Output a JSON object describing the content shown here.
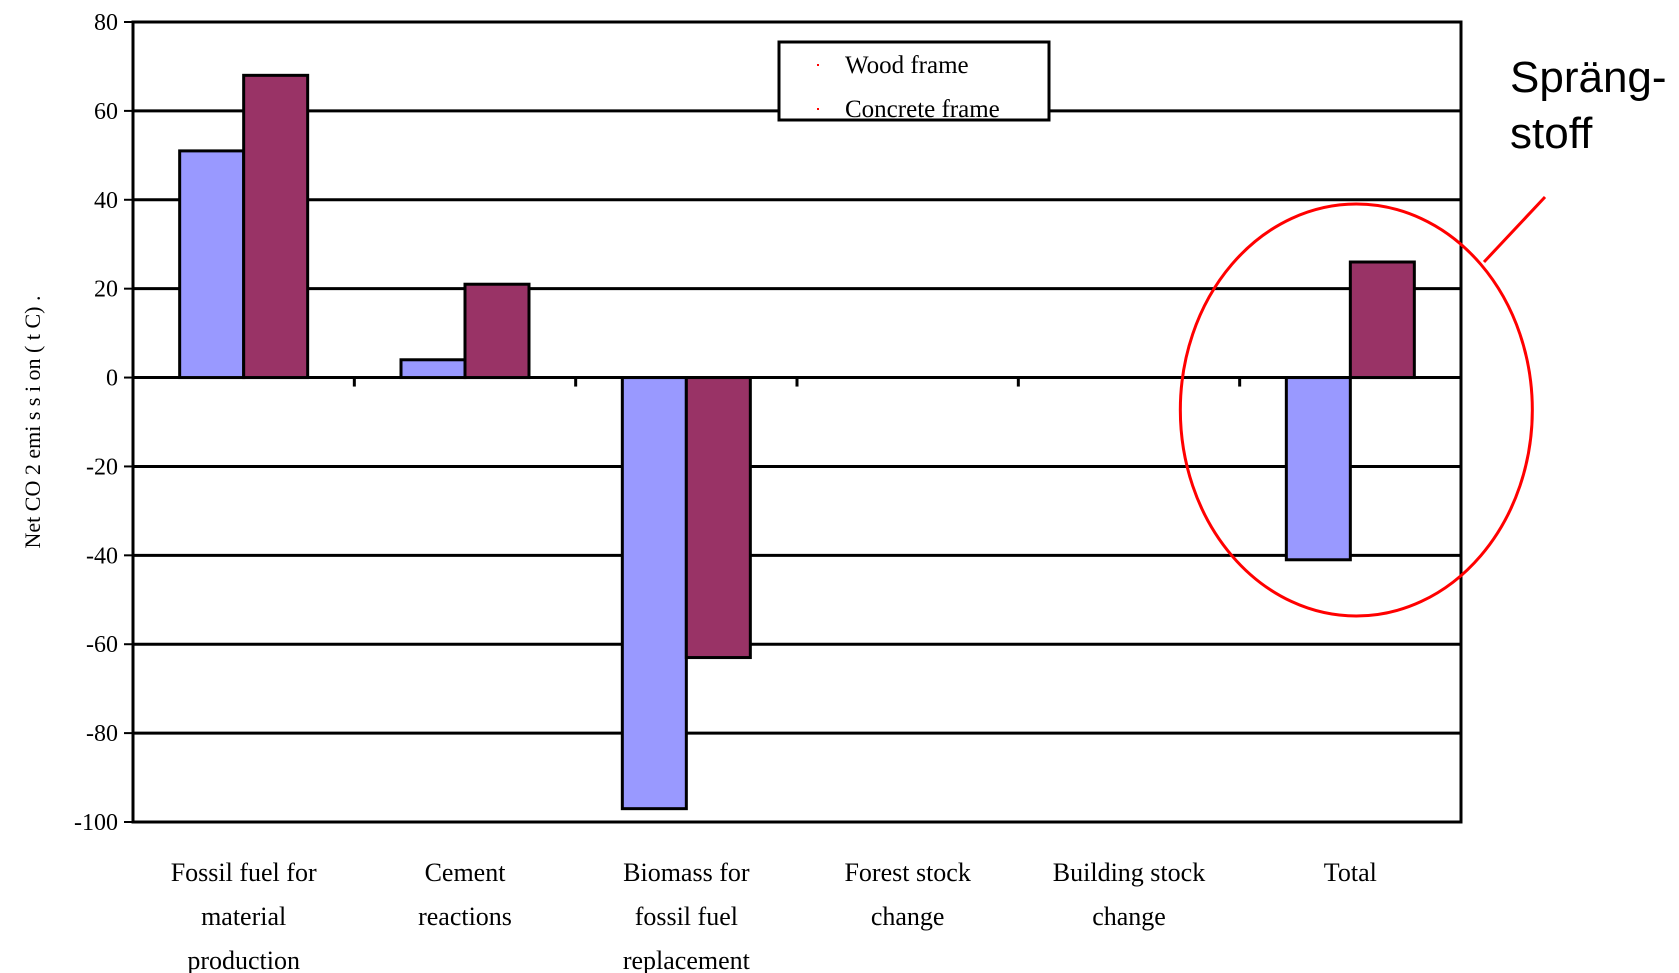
{
  "chart_data": {
    "type": "bar",
    "ylabel": "Net CO 2 emi s s i on ( t C) .",
    "ylim": [
      -100,
      80
    ],
    "yticks": [
      80,
      60,
      40,
      20,
      0,
      -20,
      -40,
      -60,
      -80,
      -100
    ],
    "grid": true,
    "legend_position": "top-center",
    "categories": [
      [
        "Fossil fuel for",
        "material",
        "production"
      ],
      [
        "Cement",
        "reactions"
      ],
      [
        "Biomass for",
        "fossil fuel",
        "replacement"
      ],
      [
        "Forest stock",
        "change"
      ],
      [
        "Building stock",
        "change"
      ],
      [
        "Total"
      ]
    ],
    "series": [
      {
        "name": "Wood frame",
        "color": "#9999ff",
        "values": [
          51,
          4,
          -97,
          0,
          0,
          -41
        ]
      },
      {
        "name": "Concrete frame",
        "color": "#993366",
        "values": [
          68,
          21,
          -63,
          0,
          0,
          26
        ]
      }
    ]
  },
  "annotation": {
    "text_lines": [
      "Spräng-",
      "stoff"
    ],
    "color": "#ff0000",
    "target_category": "Total"
  }
}
